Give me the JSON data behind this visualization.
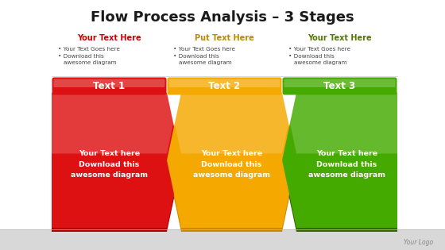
{
  "title": "Flow Process Analysis – 3 Stages",
  "title_fontsize": 13,
  "bg_color": "#ffffff",
  "bottom_bar_color": "#d8d8d8",
  "stages": [
    {
      "header_text": "Your Text Here",
      "header_color": "#cc0000",
      "bullet1": "Your Text Goes here",
      "bullet2": "Download this\nawesome diagram",
      "button_text": "Text 1",
      "button_color": "#dd1111",
      "chevron_color": "#dd1111",
      "chevron_dark": "#aa0000",
      "body_text": "Your Text here\nDownload this\nawesome diagram"
    },
    {
      "header_text": "Put Text Here",
      "header_color": "#bb8800",
      "bullet1": "Your Text Goes here",
      "bullet2": "Download this\nawesome diagram",
      "button_text": "Text 2",
      "button_color": "#f5a800",
      "chevron_color": "#f5a800",
      "chevron_dark": "#cc8800",
      "body_text": "Your Text here\nDownload this\nawesome diagram"
    },
    {
      "header_text": "Your Text Here",
      "header_color": "#557700",
      "bullet1": "Your Text Goes here",
      "bullet2": "Download this\nawesome diagram",
      "button_text": "Text 3",
      "button_color": "#44aa00",
      "chevron_color": "#44aa00",
      "chevron_dark": "#336600",
      "body_text": "Your Text here\nDownload this\nawesome diagram"
    }
  ],
  "logo_text": "Your Logo"
}
